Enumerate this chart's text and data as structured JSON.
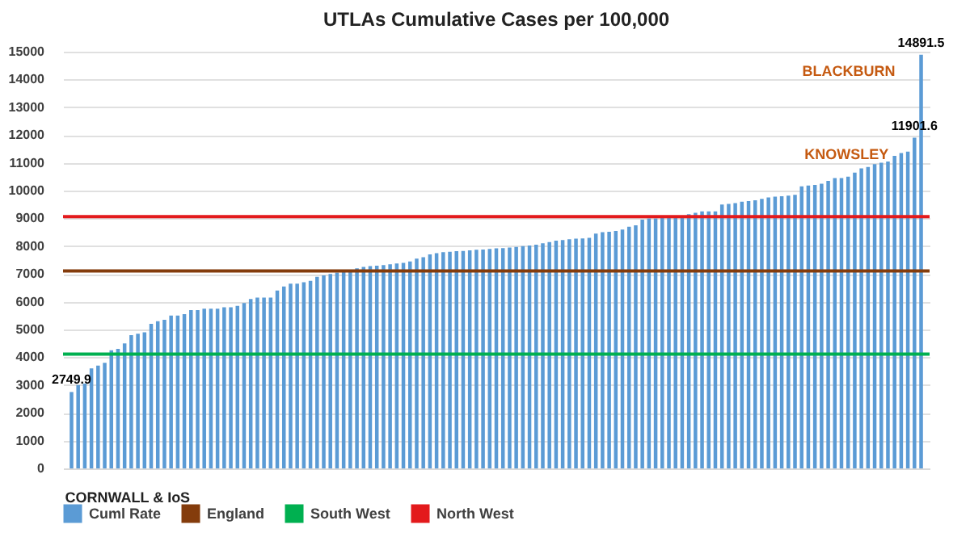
{
  "chart_data": {
    "type": "bar",
    "title": "UTLAs Cumulative Cases per 100,000",
    "categories": [
      null,
      null,
      null,
      null,
      null,
      null,
      null,
      null,
      null,
      null,
      null,
      null,
      null,
      null,
      null,
      null,
      null,
      null,
      null,
      null,
      null,
      null,
      null,
      null,
      null,
      null,
      null,
      null,
      null,
      null,
      null,
      null,
      null,
      null,
      null,
      null,
      null,
      null,
      null,
      null,
      null,
      null,
      null,
      null,
      null,
      null,
      null,
      null,
      null,
      null,
      null,
      null,
      null,
      null,
      null,
      null,
      null,
      null,
      null,
      null,
      null,
      null,
      null,
      null,
      null,
      null,
      null,
      null,
      null,
      null,
      null,
      null,
      null,
      null,
      null,
      null,
      null,
      null,
      null,
      null,
      null,
      null,
      null,
      null,
      null,
      null,
      null,
      null,
      null,
      null,
      null,
      null,
      null,
      null,
      null,
      null,
      null,
      null,
      null,
      null,
      null,
      null,
      null,
      null,
      null,
      null,
      null,
      null,
      null,
      null,
      null,
      null,
      null,
      null,
      null,
      null,
      null,
      null,
      null,
      null,
      null,
      null,
      null,
      null,
      null,
      null,
      null,
      null,
      null
    ],
    "series": [
      {
        "name": "Cuml Rate",
        "color": "#5b9bd5",
        "values": [
          2749.9,
          3000,
          3050,
          3600,
          3700,
          3800,
          4250,
          4300,
          4500,
          4800,
          4850,
          4900,
          5200,
          5300,
          5350,
          5500,
          5500,
          5550,
          5700,
          5700,
          5750,
          5750,
          5750,
          5800,
          5800,
          5850,
          5950,
          6100,
          6150,
          6150,
          6150,
          6400,
          6550,
          6650,
          6650,
          6700,
          6750,
          6900,
          6950,
          7000,
          7050,
          7100,
          7150,
          7200,
          7250,
          7280,
          7300,
          7320,
          7350,
          7380,
          7400,
          7450,
          7550,
          7600,
          7700,
          7750,
          7780,
          7800,
          7820,
          7830,
          7850,
          7870,
          7880,
          7900,
          7920,
          7930,
          7950,
          7970,
          8000,
          8020,
          8050,
          8100,
          8150,
          8200,
          8220,
          8250,
          8270,
          8280,
          8300,
          8450,
          8500,
          8520,
          8550,
          8600,
          8700,
          8750,
          8950,
          9000,
          9000,
          9020,
          9050,
          9080,
          9100,
          9150,
          9200,
          9250,
          9250,
          9250,
          9500,
          9520,
          9550,
          9600,
          9620,
          9650,
          9700,
          9750,
          9780,
          9800,
          9820,
          9850,
          10150,
          10180,
          10200,
          10250,
          10350,
          10450,
          10450,
          10500,
          10650,
          10800,
          10850,
          10950,
          11000,
          11050,
          11250,
          11350,
          11400,
          11901.6,
          14891.5
        ],
        "value_labels": [
          "2749.9",
          null,
          null,
          null,
          null,
          null,
          null,
          null,
          null,
          null,
          null,
          null,
          null,
          null,
          null,
          null,
          null,
          null,
          null,
          null,
          null,
          null,
          null,
          null,
          null,
          null,
          null,
          null,
          null,
          null,
          null,
          null,
          null,
          null,
          null,
          null,
          null,
          null,
          null,
          null,
          null,
          null,
          null,
          null,
          null,
          null,
          null,
          null,
          null,
          null,
          null,
          null,
          null,
          null,
          null,
          null,
          null,
          null,
          null,
          null,
          null,
          null,
          null,
          null,
          null,
          null,
          null,
          null,
          null,
          null,
          null,
          null,
          null,
          null,
          null,
          null,
          null,
          null,
          null,
          null,
          null,
          null,
          null,
          null,
          null,
          null,
          null,
          null,
          null,
          null,
          null,
          null,
          null,
          null,
          null,
          null,
          null,
          null,
          null,
          null,
          null,
          null,
          null,
          null,
          null,
          null,
          null,
          null,
          null,
          null,
          null,
          null,
          null,
          null,
          null,
          null,
          null,
          null,
          null,
          null,
          null,
          null,
          null,
          null,
          null,
          null,
          null,
          "11901.6",
          "14891.5"
        ]
      }
    ],
    "ylim": [
      0,
      15000
    ],
    "yticks": [
      0,
      1000,
      2000,
      3000,
      4000,
      5000,
      6000,
      7000,
      8000,
      9000,
      10000,
      11000,
      12000,
      13000,
      14000,
      15000
    ],
    "grid": "y",
    "legend": "bottom",
    "ref_lines": [
      {
        "axis": "y",
        "value": 7110,
        "label": "England",
        "color": "#843c0c"
      },
      {
        "axis": "y",
        "value": 4110,
        "label": "South West",
        "color": "#00b050"
      },
      {
        "axis": "y",
        "value": 9060,
        "label": "North West",
        "color": "#e31a1c"
      }
    ],
    "annotations": [
      "CORNWALL & IoS",
      "KNOWSLEY",
      "BLACKBURN"
    ]
  }
}
